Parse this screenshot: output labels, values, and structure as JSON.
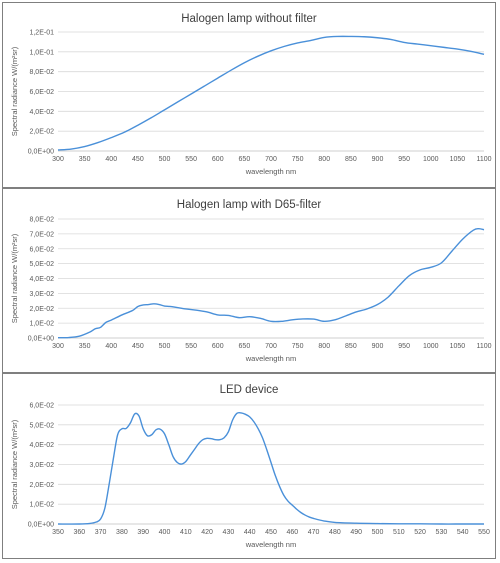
{
  "colors": {
    "series": "#4a90d9",
    "grid": "#d9d9d9",
    "text": "#595959",
    "border": "#7f7f7f"
  },
  "chart_data": [
    {
      "type": "line",
      "title": "Halogen lamp without filter",
      "xlabel": "wavelength nm",
      "ylabel": "Spectral radiance W/(m²sr)",
      "xlim": [
        300,
        1100
      ],
      "ylim": [
        0,
        0.12
      ],
      "x_ticks": [
        "300",
        "350",
        "400",
        "450",
        "500",
        "550",
        "600",
        "650",
        "700",
        "750",
        "800",
        "850",
        "900",
        "950",
        "1000",
        "1050",
        "1100"
      ],
      "y_ticks": [
        "0,0E+00",
        "2,0E-02",
        "4,0E-02",
        "6,0E-02",
        "8,0E-02",
        "1,0E-01",
        "1,2E-01"
      ],
      "grid": true,
      "legend": "none",
      "series": [
        {
          "x": [
            300,
            325,
            350,
            375,
            400,
            425,
            450,
            475,
            500,
            525,
            550,
            575,
            600,
            625,
            650,
            675,
            700,
            725,
            750,
            775,
            800,
            825,
            850,
            875,
            900,
            925,
            950,
            975,
            1000,
            1025,
            1050,
            1075,
            1100
          ],
          "values": [
            0.001,
            0.002,
            0.0045,
            0.0085,
            0.0135,
            0.019,
            0.026,
            0.0335,
            0.0415,
            0.0495,
            0.0575,
            0.0655,
            0.0735,
            0.0815,
            0.089,
            0.0955,
            0.101,
            0.1055,
            0.109,
            0.1115,
            0.1145,
            0.1155,
            0.1155,
            0.1152,
            0.1142,
            0.1125,
            0.1095,
            0.1078,
            0.1062,
            0.1045,
            0.1028,
            0.1005,
            0.0975
          ]
        }
      ]
    },
    {
      "type": "line",
      "title": "Halogen lamp with D65-filter",
      "xlabel": "wavelength nm",
      "ylabel": "Spectral radiance W/(m²sr)",
      "xlim": [
        300,
        1100
      ],
      "ylim": [
        0,
        0.08
      ],
      "x_ticks": [
        "300",
        "350",
        "400",
        "450",
        "500",
        "550",
        "600",
        "650",
        "700",
        "750",
        "800",
        "850",
        "900",
        "950",
        "1000",
        "1050",
        "1100"
      ],
      "y_ticks": [
        "0,0E+00",
        "1,0E-02",
        "2,0E-02",
        "3,0E-02",
        "4,0E-02",
        "5,0E-02",
        "6,0E-02",
        "7,0E-02",
        "8,0E-02"
      ],
      "grid": true,
      "legend": "none",
      "series": [
        {
          "x": [
            300,
            320,
            340,
            360,
            370,
            380,
            390,
            400,
            420,
            440,
            450,
            460,
            470,
            480,
            490,
            500,
            510,
            520,
            540,
            560,
            580,
            600,
            620,
            640,
            660,
            680,
            700,
            720,
            740,
            760,
            780,
            800,
            820,
            840,
            860,
            880,
            900,
            920,
            940,
            960,
            980,
            1000,
            1020,
            1040,
            1060,
            1080,
            1090,
            1100
          ],
          "values": [
            0.0002,
            0.0003,
            0.0012,
            0.004,
            0.0062,
            0.0072,
            0.0105,
            0.012,
            0.0155,
            0.0185,
            0.0212,
            0.0222,
            0.0225,
            0.023,
            0.0225,
            0.0215,
            0.0212,
            0.0207,
            0.0195,
            0.0187,
            0.0175,
            0.0155,
            0.0152,
            0.0137,
            0.0143,
            0.0132,
            0.0112,
            0.0112,
            0.0122,
            0.0128,
            0.0127,
            0.0112,
            0.0122,
            0.0148,
            0.0175,
            0.0195,
            0.0225,
            0.0275,
            0.035,
            0.042,
            0.0458,
            0.0475,
            0.0505,
            0.0585,
            0.0665,
            0.0725,
            0.0735,
            0.0728
          ]
        }
      ]
    },
    {
      "type": "line",
      "title": "LED device",
      "xlabel": "wavelength nm",
      "ylabel": "Spectral radiance W/(m²sr)",
      "xlim": [
        350,
        550
      ],
      "ylim": [
        0,
        0.06
      ],
      "x_ticks": [
        "350",
        "360",
        "370",
        "380",
        "390",
        "400",
        "410",
        "420",
        "430",
        "440",
        "450",
        "460",
        "470",
        "480",
        "490",
        "500",
        "510",
        "520",
        "530",
        "540",
        "550"
      ],
      "y_ticks": [
        "0,0E+00",
        "1,0E-02",
        "2,0E-02",
        "3,0E-02",
        "4,0E-02",
        "5,0E-02",
        "6,0E-02"
      ],
      "grid": true,
      "legend": "none",
      "series": [
        {
          "x": [
            350,
            360,
            365,
            368,
            370,
            372,
            374,
            376,
            378,
            380,
            382,
            384,
            386,
            388,
            390,
            392,
            394,
            396,
            398,
            400,
            402,
            404,
            406,
            408,
            410,
            412,
            414,
            416,
            418,
            420,
            422,
            424,
            426,
            428,
            430,
            432,
            434,
            436,
            438,
            440,
            442,
            444,
            446,
            448,
            450,
            452,
            454,
            456,
            458,
            460,
            462,
            464,
            466,
            468,
            470,
            475,
            480,
            490,
            500,
            510,
            520,
            530,
            540,
            550
          ],
          "values": [
            0,
            0,
            0.0003,
            0.001,
            0.0025,
            0.008,
            0.02,
            0.033,
            0.045,
            0.048,
            0.0482,
            0.051,
            0.0555,
            0.0545,
            0.048,
            0.0445,
            0.045,
            0.0475,
            0.0478,
            0.0455,
            0.04,
            0.034,
            0.031,
            0.0302,
            0.0315,
            0.0345,
            0.0375,
            0.0405,
            0.0425,
            0.0432,
            0.043,
            0.0425,
            0.0425,
            0.0435,
            0.0465,
            0.0525,
            0.0558,
            0.056,
            0.0553,
            0.054,
            0.0515,
            0.048,
            0.0435,
            0.0375,
            0.031,
            0.0245,
            0.019,
            0.0145,
            0.0115,
            0.0095,
            0.0075,
            0.0058,
            0.0045,
            0.0035,
            0.0028,
            0.0015,
            0.0008,
            0.0004,
            0.0002,
            0.0001,
            0.0001,
            0,
            0,
            0
          ]
        }
      ]
    }
  ]
}
